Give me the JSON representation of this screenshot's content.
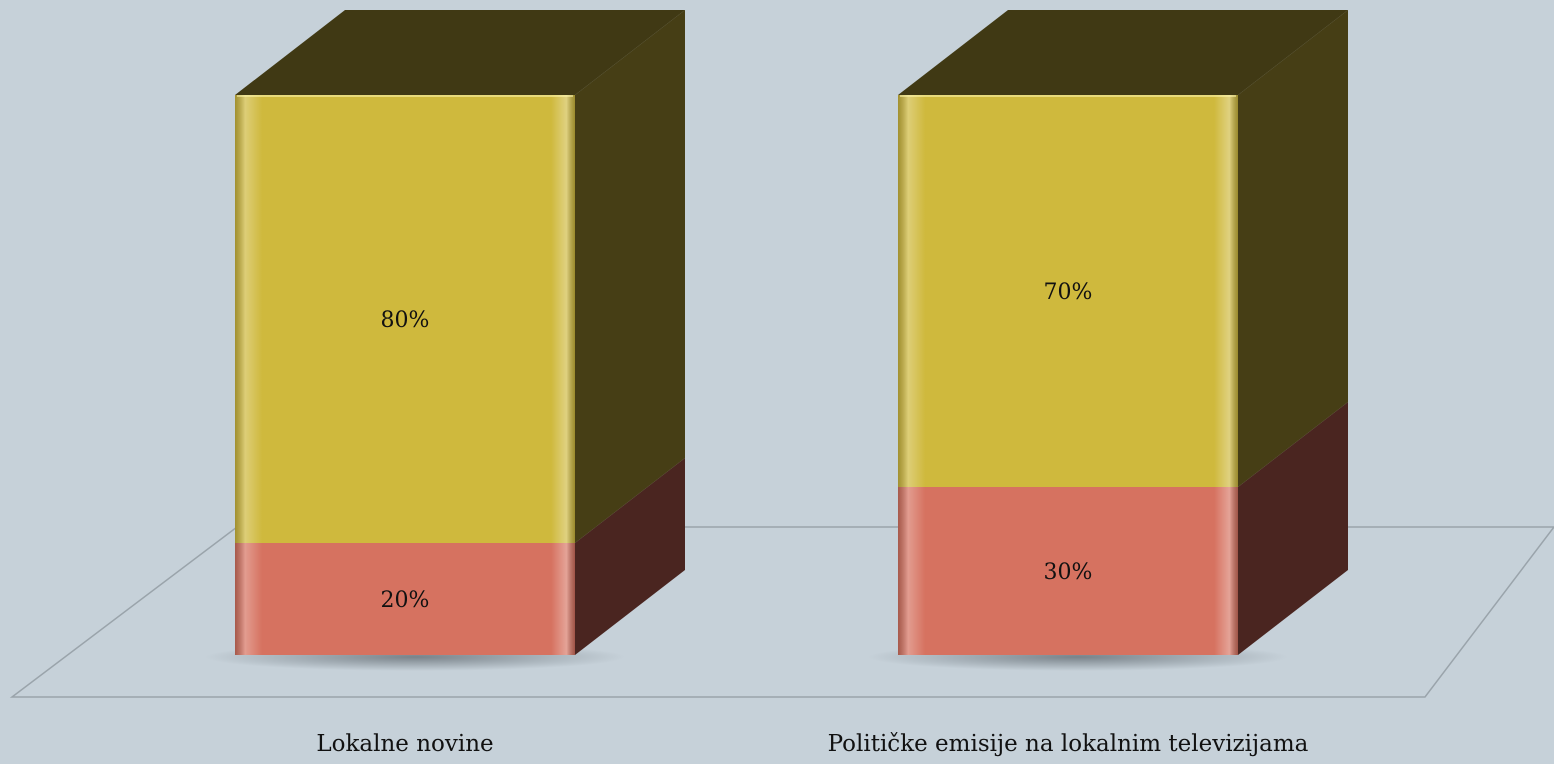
{
  "chart_data": {
    "type": "bar",
    "stacked": true,
    "three_d": true,
    "categories": [
      "Lokalne novine",
      "Političke emisije na lokalnim televizijama"
    ],
    "series": [
      {
        "values": [
          20,
          30
        ],
        "labels": [
          "20%",
          "30%"
        ]
      },
      {
        "values": [
          80,
          70
        ],
        "labels": [
          "80%",
          "70%"
        ]
      }
    ],
    "ylim": [
      0,
      100
    ],
    "unit": "%",
    "colors": {
      "background": "#c6d1d9",
      "series_front": [
        "#d67260",
        "#cfb93d"
      ],
      "series_side": [
        "#4a2520",
        "#463e15"
      ],
      "series_top": [
        "#4a2520",
        "#403914"
      ],
      "floor_line": "#9aa4ab"
    },
    "legend": "none",
    "grid": false
  }
}
